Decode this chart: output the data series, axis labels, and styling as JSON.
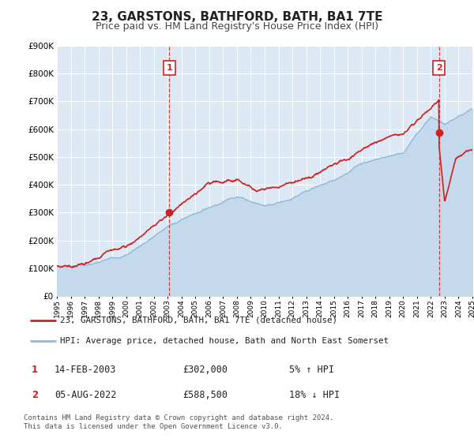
{
  "title": "23, GARSTONS, BATHFORD, BATH, BA1 7TE",
  "subtitle": "Price paid vs. HM Land Registry's House Price Index (HPI)",
  "title_fontsize": 11,
  "subtitle_fontsize": 9,
  "background_color": "#ffffff",
  "plot_bg_color": "#dce9f5",
  "grid_color": "#ffffff",
  "price_line_color": "#cc2222",
  "hpi_line_color": "#90b8d8",
  "hpi_fill_color": "#c5d9ec",
  "ylim": [
    0,
    900000
  ],
  "yticks": [
    0,
    100000,
    200000,
    300000,
    400000,
    500000,
    600000,
    700000,
    800000,
    900000
  ],
  "xlim_start": 1995,
  "xlim_end": 2025,
  "legend_label_price": "23, GARSTONS, BATHFORD, BATH, BA1 7TE (detached house)",
  "legend_label_hpi": "HPI: Average price, detached house, Bath and North East Somerset",
  "marker1_x": 2003.12,
  "marker1_y": 302000,
  "marker1_label": "1",
  "marker1_date": "14-FEB-2003",
  "marker1_price": "£302,000",
  "marker1_hpi": "5% ↑ HPI",
  "marker2_x": 2022.58,
  "marker2_y": 588500,
  "marker2_label": "2",
  "marker2_date": "05-AUG-2022",
  "marker2_price": "£588,500",
  "marker2_hpi": "18% ↓ HPI",
  "footer": "Contains HM Land Registry data © Crown copyright and database right 2024.\nThis data is licensed under the Open Government Licence v3.0."
}
